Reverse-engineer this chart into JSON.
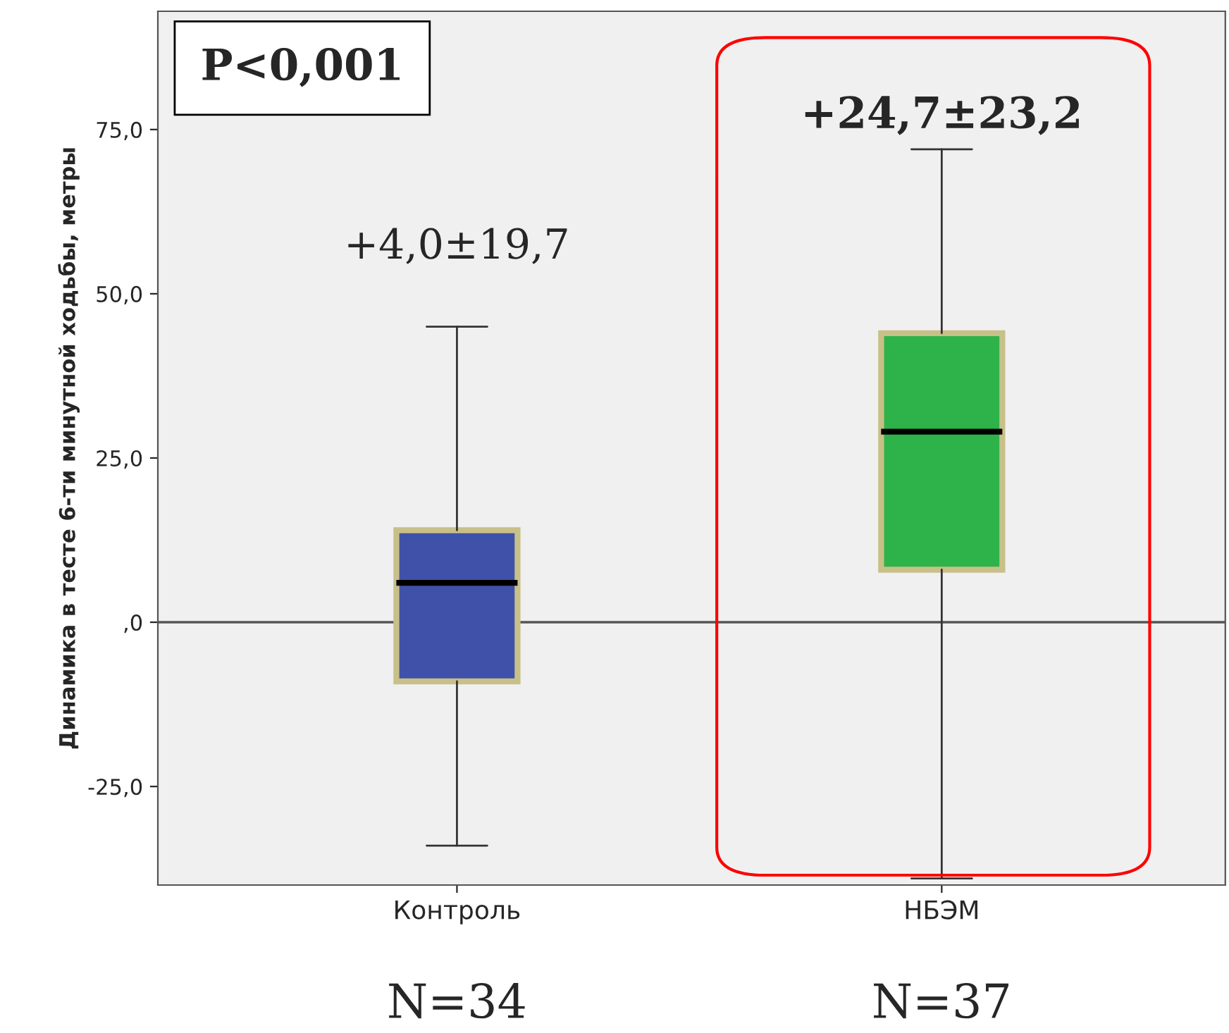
{
  "chart_data": {
    "type": "box",
    "ylabel": "Динамика в тесте 6-ти минутной ходьбы, метры",
    "categories": [
      "Контроль",
      "НБЭМ"
    ],
    "boxes": [
      {
        "low": -34,
        "q1": -9,
        "median": 6,
        "q3": 14,
        "high": 45
      },
      {
        "low": -39,
        "q1": 8,
        "median": 29,
        "q3": 44,
        "high": 72
      }
    ],
    "colors": [
      "#3f51a8",
      "#2db34a"
    ],
    "ylim": [
      -40,
      93
    ],
    "yticks": [
      {
        "value": -25,
        "label": "-25,0"
      },
      {
        "value": 0,
        "label": ",0"
      },
      {
        "value": 25,
        "label": "25,0"
      },
      {
        "value": 50,
        "label": "50,0"
      },
      {
        "value": 75,
        "label": "75,0"
      }
    ],
    "ref_lines": [
      {
        "axis": "y",
        "value": 0,
        "color": "#555555"
      }
    ],
    "grid": false,
    "annotations": [
      "P<0,001",
      "+4,0±19,7",
      "+24,7±23,2",
      "N=34",
      "N=37"
    ]
  }
}
